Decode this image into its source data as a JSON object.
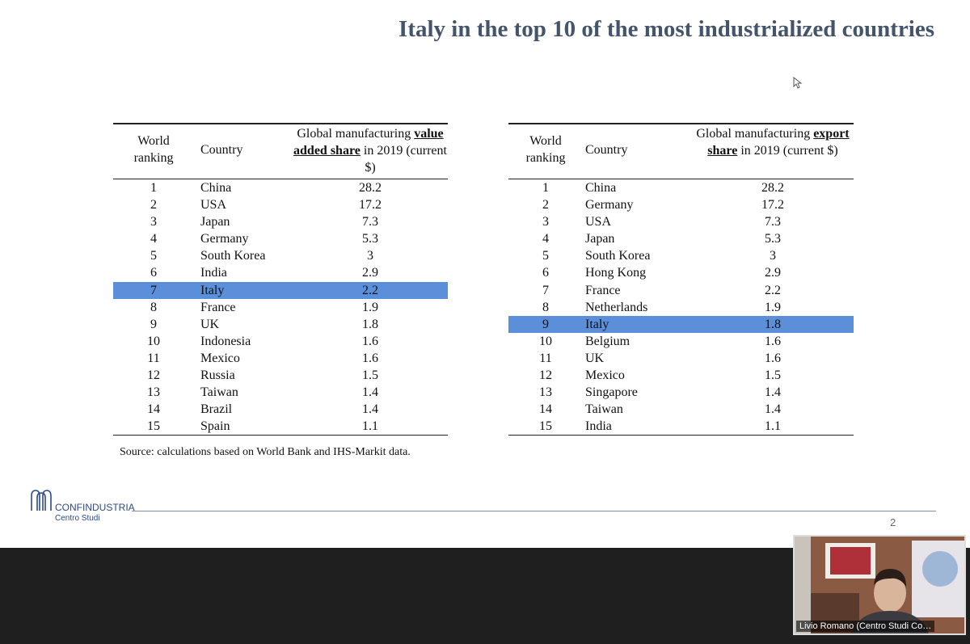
{
  "slide": {
    "title": "Italy in the top 10 of the most industrialized countries",
    "tables": [
      {
        "header": [
          "World ranking",
          "Country",
          [
            "Global manufacturing",
            "value added share",
            "in 2019 (current $)"
          ]
        ],
        "highlight_row_index": 6,
        "rows": [
          [
            1,
            "China",
            28.2
          ],
          [
            2,
            "USA",
            17.2
          ],
          [
            3,
            "Japan",
            7.3
          ],
          [
            4,
            "Germany",
            5.3
          ],
          [
            5,
            "South Korea",
            3
          ],
          [
            6,
            "India",
            2.9
          ],
          [
            7,
            "Italy",
            2.2
          ],
          [
            8,
            "France",
            1.9
          ],
          [
            9,
            "UK",
            1.8
          ],
          [
            10,
            "Indonesia",
            1.6
          ],
          [
            11,
            "Mexico",
            1.6
          ],
          [
            12,
            "Russia",
            1.5
          ],
          [
            13,
            "Taiwan",
            1.4
          ],
          [
            14,
            "Brazil",
            1.4
          ],
          [
            15,
            "Spain",
            1.1
          ]
        ]
      },
      {
        "header": [
          "World ranking",
          "Country",
          [
            "Global manufacturing",
            "export share",
            "in 2019 (current $)"
          ]
        ],
        "highlight_row_index": 8,
        "rows": [
          [
            1,
            "China",
            28.2
          ],
          [
            2,
            "Germany",
            17.2
          ],
          [
            3,
            "USA",
            7.3
          ],
          [
            4,
            "Japan",
            5.3
          ],
          [
            5,
            "South Korea",
            3
          ],
          [
            6,
            "Hong Kong",
            2.9
          ],
          [
            7,
            "France",
            2.2
          ],
          [
            8,
            "Netherlands",
            1.9
          ],
          [
            9,
            "Italy",
            1.8
          ],
          [
            10,
            "Belgium",
            1.6
          ],
          [
            11,
            "UK",
            1.6
          ],
          [
            12,
            "Mexico",
            1.5
          ],
          [
            13,
            "Singapore",
            1.4
          ],
          [
            14,
            "Taiwan",
            1.4
          ],
          [
            15,
            "India",
            1.1
          ]
        ]
      }
    ],
    "source": "Source: calculations based on World Bank and IHS-Markit data.",
    "logo": {
      "name": "CONFINDUSTRIA",
      "sub": "Centro Studi"
    },
    "page_number": "2"
  },
  "video": {
    "participant": "Livio Romano (Centro Studi Co…"
  }
}
